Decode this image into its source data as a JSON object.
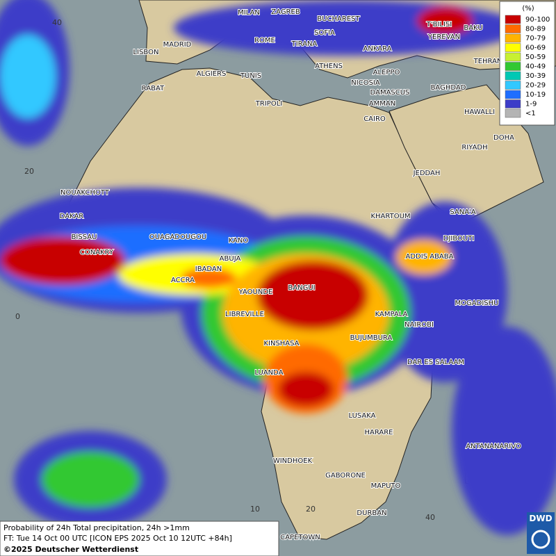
{
  "header": {
    "footer_lines": [
      "Probability of 24h Total precipitation, 24h >1mm",
      "FT: Tue 14 Oct 00 UTC [ICON EPS 2025 Oct 10 12UTC +84h]",
      "©2025 Deutscher Wetterdienst"
    ],
    "logo": "DWD"
  },
  "legend": {
    "unit": "(%)",
    "items": [
      {
        "label": "90-100",
        "color": "#c80000"
      },
      {
        "label": "80-89",
        "color": "#ff6a00"
      },
      {
        "label": "70-79",
        "color": "#ffb400"
      },
      {
        "label": "60-69",
        "color": "#ffff00"
      },
      {
        "label": "50-59",
        "color": "#c8f032"
      },
      {
        "label": "40-49",
        "color": "#32c832"
      },
      {
        "label": "30-39",
        "color": "#00c8b4"
      },
      {
        "label": "20-29",
        "color": "#32c8ff"
      },
      {
        "label": "10-19",
        "color": "#1e6eff"
      },
      {
        "label": "1-9",
        "color": "#3c3cc8"
      },
      {
        "label": "<1",
        "color": "#b4b4b4"
      }
    ]
  },
  "cities": [
    "MILAN",
    "ZAGREB",
    "BUCHAREST",
    "SOFIA",
    "ROME",
    "TIRANA",
    "ANKARA",
    "T'BILISI",
    "BAKU",
    "YEREVAN",
    "MADRID",
    "LISBON",
    "ATHENS",
    "TEHRAN",
    "ALGIERS",
    "TUNIS",
    "ALEPPO",
    "NICOSIA",
    "BAGHDAD",
    "RABAT",
    "DAMASCUS",
    "AMMAN",
    "TRIPOLI",
    "HAWALLI",
    "CAIRO",
    "DOHA",
    "RIYADH",
    "JEDDAH",
    "NOUAKCHOTT",
    "SANA'A",
    "KHARTOUM",
    "DAKAR",
    "BISSAU",
    "OUAGADOUGOU",
    "DJIBOUTI",
    "KANO",
    "CONAKRY",
    "ADDIS ABABA",
    "ABUJA",
    "IBADAN",
    "ACCRA",
    "BANGUI",
    "YAOUNDE",
    "MOGADISHU",
    "LIBREVILLE",
    "KAMPALA",
    "NAIROBI",
    "BUJUMBURA",
    "KINSHASA",
    "DAR ES SALAAM",
    "LUANDA",
    "LUSAKA",
    "HARARE",
    "ANTANANARIVO",
    "WINDHOEK",
    "GABORONE",
    "MAPUTO",
    "DURBAN",
    "CAPETOWN"
  ],
  "grid_labels": {
    "lat": [
      "40",
      "20",
      "0"
    ],
    "lon": [
      "10",
      "20",
      "40"
    ]
  }
}
